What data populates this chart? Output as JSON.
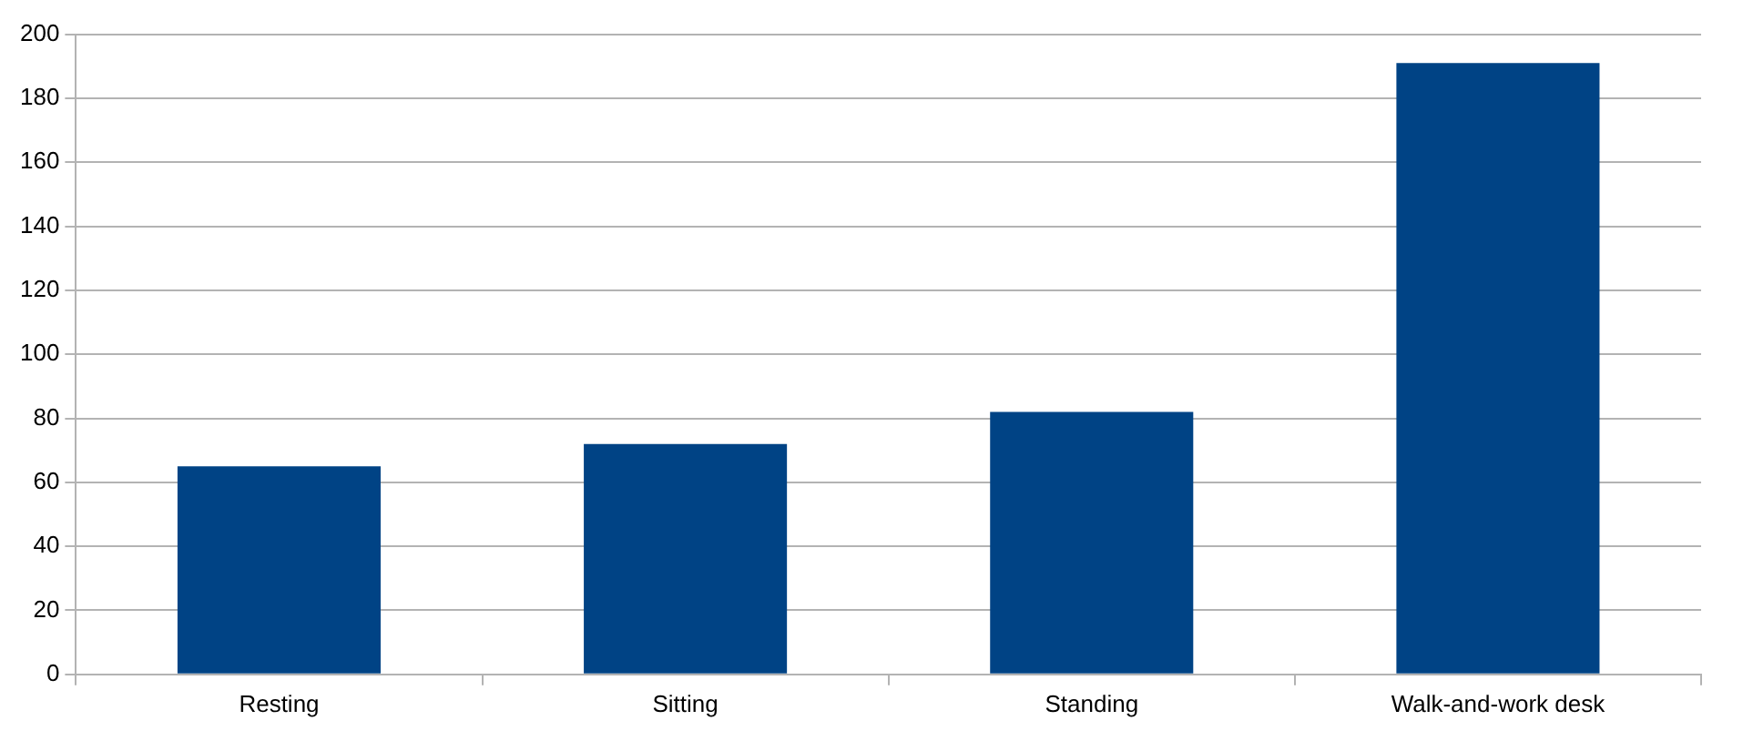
{
  "chart_data": {
    "type": "bar",
    "categories": [
      "Resting",
      "Sitting",
      "Standing",
      "Walk-and-work desk"
    ],
    "values": [
      65,
      72,
      82,
      191
    ],
    "color": "#004385",
    "ylim": [
      0,
      200
    ],
    "yticks": [
      0,
      20,
      40,
      60,
      80,
      100,
      120,
      140,
      160,
      180,
      200
    ],
    "grid": "y",
    "legend": false
  }
}
